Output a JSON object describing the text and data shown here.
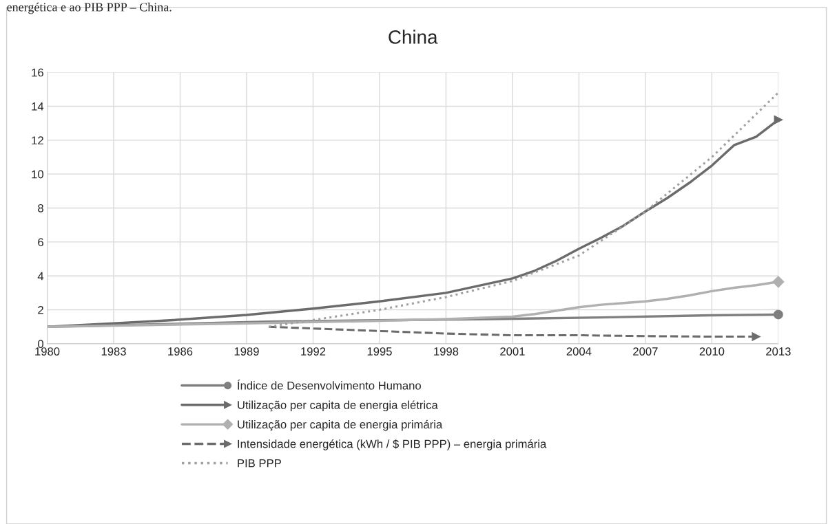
{
  "chart_data": {
    "type": "line",
    "title": "China",
    "annotations": [
      "energética e ao PIB PPP – China."
    ],
    "xlim": [
      1980,
      2013
    ],
    "xticks": [
      1980,
      1983,
      1986,
      1989,
      1992,
      1995,
      1998,
      2001,
      2004,
      2007,
      2010,
      2013
    ],
    "ylim": [
      0,
      16
    ],
    "yticks": [
      0,
      2,
      4,
      6,
      8,
      10,
      12,
      14,
      16
    ],
    "grid": true,
    "legend": "bottom",
    "series": [
      {
        "name": "Índice de Desenvolvimento Humano",
        "color": "#7f7f7f",
        "line_style": "solid",
        "x": [
          1980,
          1985,
          1990,
          1995,
          2000,
          2005,
          2010,
          2013
        ],
        "values": [
          1.0,
          1.15,
          1.3,
          1.38,
          1.45,
          1.55,
          1.68,
          1.72
        ]
      },
      {
        "name": "Utilização per capita de energia elétrica",
        "color": "#6b6b6b",
        "line_style": "solid",
        "x": [
          1980,
          1983,
          1986,
          1989,
          1992,
          1995,
          1998,
          2001,
          2002,
          2003,
          2004,
          2005,
          2006,
          2007,
          2008,
          2009,
          2010,
          2011,
          2012,
          2013
        ],
        "values": [
          1.0,
          1.2,
          1.42,
          1.7,
          2.07,
          2.5,
          3.0,
          3.85,
          4.3,
          4.9,
          5.6,
          6.25,
          6.95,
          7.8,
          8.6,
          9.5,
          10.5,
          11.7,
          12.2,
          13.2
        ]
      },
      {
        "name": "Utilização per capita de energia primária",
        "color": "#b0b0b0",
        "line_style": "solid",
        "x": [
          1980,
          1989,
          1995,
          1998,
          2001,
          2002,
          2003,
          2004,
          2005,
          2006,
          2007,
          2008,
          2009,
          2010,
          2011,
          2012,
          2013
        ],
        "values": [
          1.0,
          1.2,
          1.35,
          1.45,
          1.6,
          1.75,
          1.95,
          2.15,
          2.3,
          2.4,
          2.5,
          2.65,
          2.85,
          3.1,
          3.3,
          3.45,
          3.65
        ]
      },
      {
        "name": "Intensidade energética (kWh / $ PIB PPP) – energia primária",
        "color": "#6b6b6b",
        "line_style": "dashed",
        "x": [
          1990,
          1992,
          1995,
          1998,
          2001,
          2004,
          2007,
          2010,
          2012
        ],
        "values": [
          1.0,
          0.9,
          0.75,
          0.6,
          0.5,
          0.5,
          0.45,
          0.42,
          0.42
        ]
      },
      {
        "name": "PIB PPP",
        "color": "#a0a0a0",
        "line_style": "dotted",
        "x": [
          1990,
          1992,
          1995,
          1998,
          2001,
          2004,
          2007,
          2010,
          2013
        ],
        "values": [
          1.0,
          1.4,
          2.0,
          2.75,
          3.7,
          5.2,
          7.8,
          11.0,
          14.8
        ]
      }
    ]
  }
}
